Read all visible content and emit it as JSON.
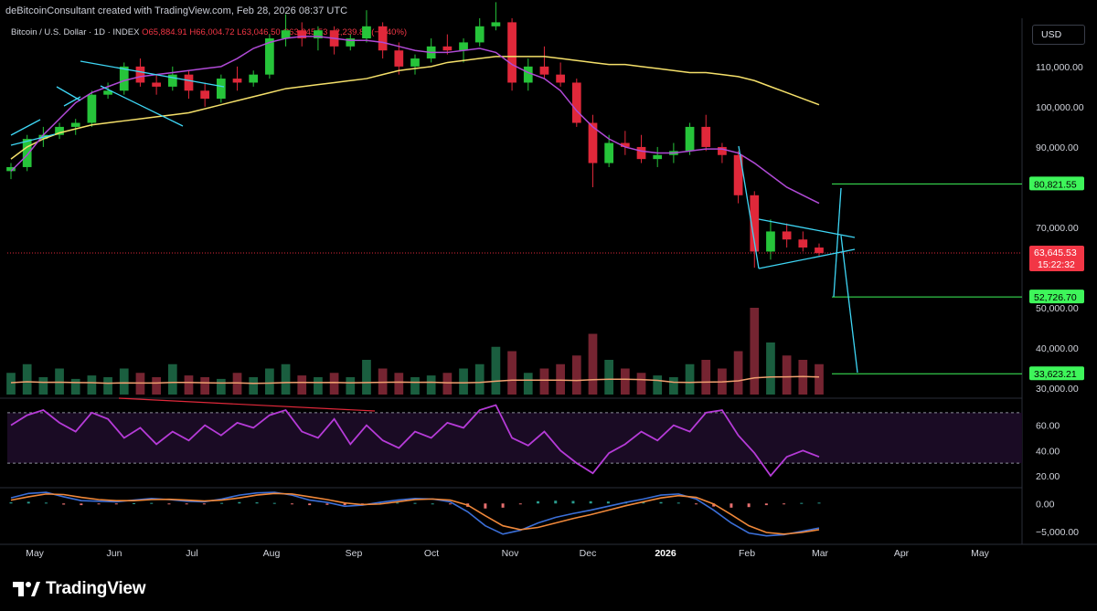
{
  "header": {
    "credit": "deBitcoinConsultant created with TradingView.com, Feb 28, 2026 08:37 UTC",
    "symbol": "Bitcoin / U.S. Dollar · 1D · INDEX",
    "open": "O65,884.91",
    "high": "H66,004.72",
    "low": "L63,046.50",
    "close": "C63,645.53",
    "change": "−2,239.88 (−3.40%)"
  },
  "currency": "USD",
  "colors": {
    "up": "#26c43a",
    "down": "#e0283a",
    "ma_fast": "#b04ad6",
    "ma_slow": "#f5e06a",
    "pattern": "#3ed6f5",
    "target": "#3ef55a",
    "rsi": "#b63bd8",
    "macd": "#3b6fd8",
    "signal": "#f0883a",
    "volume_ma": "#f0a070"
  },
  "chart_data": [
    {
      "type": "candlestick",
      "title": "",
      "x_ticks": [
        "May",
        "Jun",
        "Jul",
        "Aug",
        "Sep",
        "Oct",
        "Nov",
        "Dec",
        "2026",
        "Feb",
        "Mar",
        "Apr",
        "May"
      ],
      "y_ticks": [
        "110,000.00",
        "100,000.00",
        "90,000.00",
        "70,000.00",
        "50,000.00",
        "40,000.00",
        "30,000.00"
      ],
      "ylim": [
        28000,
        122000
      ],
      "last_price": "63,645.53",
      "countdown": "15:22:32",
      "targets": [
        {
          "label": "80,821.55",
          "value": 80821.55
        },
        {
          "label": "52,726.70",
          "value": 52726.7
        },
        {
          "label": "33,623.21",
          "value": 33623.21
        }
      ],
      "ohlc": [
        [
          84000,
          86000,
          82000,
          85000
        ],
        [
          85000,
          93000,
          84000,
          92000
        ],
        [
          92000,
          95000,
          90000,
          93000
        ],
        [
          93000,
          96000,
          92000,
          95000
        ],
        [
          95000,
          97000,
          93000,
          96000
        ],
        [
          96000,
          104000,
          95000,
          103000
        ],
        [
          103000,
          106000,
          102000,
          104000
        ],
        [
          104000,
          111000,
          103000,
          110000
        ],
        [
          110000,
          112000,
          105000,
          106000
        ],
        [
          106000,
          108000,
          103000,
          105000
        ],
        [
          105000,
          110000,
          104000,
          108000
        ],
        [
          108000,
          109000,
          102000,
          104000
        ],
        [
          104000,
          106000,
          100000,
          102000
        ],
        [
          102000,
          108000,
          101000,
          107000
        ],
        [
          107000,
          110000,
          104000,
          106000
        ],
        [
          106000,
          109000,
          105000,
          108000
        ],
        [
          108000,
          118000,
          107000,
          117000
        ],
        [
          117000,
          123000,
          115000,
          119000
        ],
        [
          119000,
          121000,
          115000,
          117000
        ],
        [
          117000,
          120000,
          114000,
          119000
        ],
        [
          119000,
          120000,
          113000,
          115000
        ],
        [
          115000,
          118000,
          114000,
          117000
        ],
        [
          117000,
          124000,
          116000,
          120000
        ],
        [
          120000,
          121000,
          112000,
          114000
        ],
        [
          114000,
          116000,
          108000,
          110000
        ],
        [
          110000,
          113000,
          108000,
          112000
        ],
        [
          112000,
          117000,
          111000,
          115000
        ],
        [
          115000,
          118000,
          113000,
          114000
        ],
        [
          114000,
          117000,
          111000,
          116000
        ],
        [
          116000,
          122000,
          115000,
          120000
        ],
        [
          120000,
          126000,
          119000,
          121000
        ],
        [
          121000,
          122000,
          104000,
          106000
        ],
        [
          106000,
          112000,
          104000,
          110000
        ],
        [
          110000,
          115000,
          107000,
          108000
        ],
        [
          108000,
          111000,
          105000,
          106000
        ],
        [
          106000,
          107000,
          95000,
          96000
        ],
        [
          96000,
          98000,
          80000,
          86000
        ],
        [
          86000,
          93000,
          85000,
          91000
        ],
        [
          91000,
          94000,
          88000,
          90000
        ],
        [
          90000,
          93000,
          86000,
          87000
        ],
        [
          87000,
          90000,
          85000,
          88000
        ],
        [
          88000,
          91000,
          86000,
          89000
        ],
        [
          89000,
          96000,
          88000,
          95000
        ],
        [
          95000,
          98000,
          89000,
          90000
        ],
        [
          90000,
          91000,
          86000,
          88000
        ],
        [
          88000,
          89000,
          76000,
          78000
        ],
        [
          78000,
          79000,
          60000,
          64000
        ],
        [
          64000,
          72000,
          62000,
          69000
        ],
        [
          69000,
          71000,
          65000,
          67000
        ],
        [
          67000,
          69000,
          64000,
          65000
        ],
        [
          65000,
          66000,
          63000,
          63600
        ]
      ],
      "ma_fast": [
        84000,
        88000,
        93000,
        97000,
        101000,
        103500,
        105000,
        106500,
        107500,
        108000,
        108500,
        109000,
        109500,
        110000,
        112000,
        114500,
        116000,
        117000,
        117500,
        117500,
        117000,
        116500,
        116500,
        116000,
        115000,
        114000,
        113500,
        113500,
        114000,
        114500,
        113500,
        110500,
        108500,
        107000,
        104000,
        99000,
        95000,
        92000,
        90000,
        89000,
        88500,
        88500,
        89000,
        89500,
        89500,
        88500,
        86000,
        83000,
        80000,
        78000,
        76000
      ],
      "ma_slow": [
        87000,
        90000,
        92000,
        93500,
        94500,
        95500,
        96000,
        96500,
        97000,
        97500,
        98000,
        98500,
        99500,
        100500,
        101500,
        102500,
        103500,
        104500,
        105000,
        105500,
        106000,
        106500,
        107000,
        108000,
        109000,
        109500,
        110000,
        111000,
        111500,
        112000,
        112500,
        112500,
        112500,
        112500,
        112000,
        111500,
        111000,
        110500,
        110500,
        110000,
        109500,
        109000,
        108500,
        108500,
        108000,
        107500,
        106500,
        105000,
        103500,
        102000,
        100500
      ],
      "volume": [
        0.25,
        0.35,
        0.2,
        0.3,
        0.18,
        0.22,
        0.2,
        0.3,
        0.25,
        0.2,
        0.35,
        0.22,
        0.2,
        0.18,
        0.25,
        0.2,
        0.3,
        0.35,
        0.22,
        0.2,
        0.25,
        0.2,
        0.4,
        0.3,
        0.25,
        0.2,
        0.22,
        0.25,
        0.3,
        0.35,
        0.55,
        0.5,
        0.25,
        0.3,
        0.35,
        0.45,
        0.7,
        0.4,
        0.3,
        0.25,
        0.22,
        0.2,
        0.35,
        0.4,
        0.3,
        0.5,
        1.0,
        0.6,
        0.45,
        0.4,
        0.35
      ]
    },
    {
      "type": "line",
      "title": "",
      "y_ticks": [
        "60.00",
        "40.00",
        "20.00"
      ],
      "ylim": [
        12,
        80
      ],
      "bands": [
        70,
        30
      ],
      "values": [
        60,
        68,
        72,
        62,
        55,
        70,
        65,
        50,
        58,
        45,
        55,
        48,
        60,
        52,
        62,
        58,
        68,
        72,
        55,
        50,
        65,
        45,
        60,
        48,
        42,
        55,
        50,
        62,
        58,
        72,
        76,
        50,
        44,
        55,
        40,
        30,
        22,
        38,
        45,
        55,
        48,
        60,
        55,
        70,
        72,
        52,
        38,
        20,
        35,
        40,
        35
      ]
    },
    {
      "type": "histogram",
      "title": "",
      "y_ticks": [
        "0.00",
        "−5,000.00"
      ],
      "ylim": [
        -7000,
        2500
      ],
      "macd": [
        1000,
        1800,
        2000,
        1200,
        500,
        400,
        300,
        600,
        900,
        700,
        400,
        300,
        800,
        1500,
        1900,
        2000,
        1500,
        600,
        200,
        -500,
        -300,
        200,
        600,
        900,
        800,
        300,
        -1500,
        -4000,
        -5500,
        -4800,
        -3500,
        -2500,
        -1800,
        -1200,
        -500,
        200,
        800,
        1500,
        1700,
        800,
        -1200,
        -3500,
        -5300,
        -5800,
        -5600,
        -5000,
        -4400
      ],
      "signal": [
        600,
        1200,
        1700,
        1600,
        1100,
        700,
        500,
        500,
        700,
        750,
        600,
        450,
        600,
        1000,
        1500,
        1800,
        1700,
        1200,
        700,
        100,
        -200,
        -100,
        300,
        700,
        800,
        600,
        -300,
        -2200,
        -4000,
        -4700,
        -4300,
        -3500,
        -2700,
        -2000,
        -1200,
        -400,
        300,
        1000,
        1400,
        1100,
        -100,
        -2000,
        -4000,
        -5200,
        -5500,
        -5200,
        -4700
      ]
    }
  ],
  "branding": {
    "logo_icon": "tradingview-logo-icon",
    "wordmark": "TradingView"
  }
}
